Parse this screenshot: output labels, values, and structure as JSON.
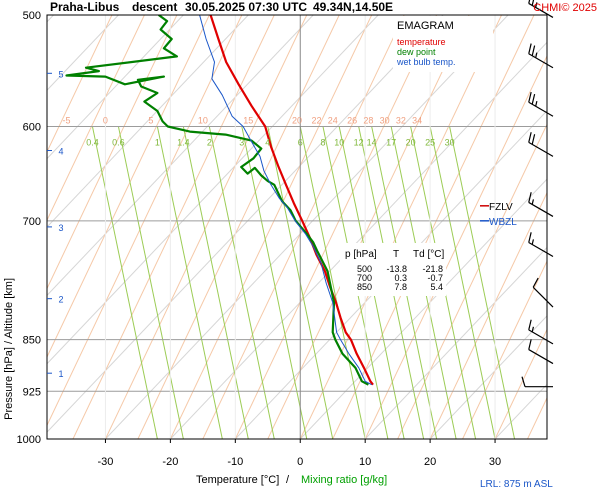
{
  "header": {
    "station": "Praha-Libus",
    "mode": "descent",
    "datetime": "30.05.2025 07:30 UTC",
    "coords": "49.34N,14.50E",
    "copyright": "CHMI© 2025"
  },
  "legend": {
    "title": "EMAGRAM",
    "items": [
      {
        "label": "temperature",
        "color": "#e00000"
      },
      {
        "label": "dew point",
        "color": "#008000"
      },
      {
        "label": "wet bulb temp.",
        "color": "#1a56c8"
      }
    ]
  },
  "table": {
    "headers": [
      "p [hPa]",
      "T",
      "Td [°C]"
    ],
    "rows": [
      [
        "500",
        "-13.8",
        "-21.8"
      ],
      [
        "700",
        "0.3",
        "-0.7"
      ],
      [
        "850",
        "7.8",
        "5.4"
      ]
    ]
  },
  "levels": {
    "fzlv": {
      "label": "FZLV",
      "pressure": 700,
      "color": "#cc0000"
    },
    "wbzl": {
      "label": "WBZL",
      "pressure": 700,
      "color": "#1a56c8"
    }
  },
  "footer": {
    "xlabel_temp": "Temperature [°C]",
    "xlabel_sep": "/",
    "xlabel_mix": "Mixing ratio [g/kg]",
    "lrl": "LRL: 875 m ASL"
  },
  "chart_data": {
    "type": "line",
    "title": "Praha-Libus descent 30.05.2025 07:30 UTC 49.34N,14.50E",
    "ylabel": "Pressure [hPa] / Altitude [km]",
    "xlim": [
      -39,
      38
    ],
    "ylim": [
      1000,
      500
    ],
    "y_log_scale": true,
    "pressure_ticks": [
      500,
      600,
      700,
      850,
      925,
      1000
    ],
    "temperature_ticks": [
      -30,
      -20,
      -10,
      0,
      10,
      20,
      30
    ],
    "altitude_ticks": [
      {
        "label": "1",
        "pressure": 898
      },
      {
        "label": "2",
        "pressure": 795
      },
      {
        "label": "3",
        "pressure": 707
      },
      {
        "label": "4",
        "pressure": 624
      },
      {
        "label": "5",
        "pressure": 550
      }
    ],
    "isotherm_labels": [
      {
        "value": "-5",
        "t": -36
      },
      {
        "value": "0",
        "t": -30
      },
      {
        "value": "5",
        "t": -23
      },
      {
        "value": "10",
        "t": -15
      },
      {
        "value": "15",
        "t": -8
      },
      {
        "value": "20",
        "t": -0.5
      },
      {
        "value": "22",
        "t": 2.5
      },
      {
        "value": "24",
        "t": 5
      },
      {
        "value": "26",
        "t": 8
      },
      {
        "value": "28",
        "t": 10.5
      },
      {
        "value": "30",
        "t": 13
      },
      {
        "value": "32",
        "t": 15.5
      },
      {
        "value": "34",
        "t": 18
      }
    ],
    "mixing_ratio_labels": [
      {
        "value": "0.4",
        "t": -32
      },
      {
        "value": "0.6",
        "t": -28
      },
      {
        "value": "1",
        "t": -22
      },
      {
        "value": "1.4",
        "t": -18
      },
      {
        "value": "2",
        "t": -14
      },
      {
        "value": "3",
        "t": -9
      },
      {
        "value": "4",
        "t": -5
      },
      {
        "value": "6",
        "t": 0
      },
      {
        "value": "8",
        "t": 3.5
      },
      {
        "value": "10",
        "t": 6
      },
      {
        "value": "12",
        "t": 9
      },
      {
        "value": "14",
        "t": 11
      },
      {
        "value": "17",
        "t": 14
      },
      {
        "value": "20",
        "t": 17
      },
      {
        "value": "25",
        "t": 20
      },
      {
        "value": "30",
        "t": 23
      }
    ],
    "series": [
      {
        "name": "temperature",
        "color": "#e00000",
        "width": 2.2,
        "points": [
          [
            -13.8,
            500
          ],
          [
            -12.6,
            520
          ],
          [
            -11.4,
            540
          ],
          [
            -9.5,
            560
          ],
          [
            -7.5,
            580
          ],
          [
            -5.4,
            600
          ],
          [
            -4.5,
            620
          ],
          [
            -3.4,
            640
          ],
          [
            -2.2,
            660
          ],
          [
            -1.0,
            680
          ],
          [
            0.3,
            700
          ],
          [
            1.5,
            720
          ],
          [
            2.5,
            740
          ],
          [
            3.8,
            760
          ],
          [
            4.6,
            780
          ],
          [
            5.5,
            800
          ],
          [
            6.2,
            820
          ],
          [
            7.0,
            840
          ],
          [
            7.8,
            850
          ],
          [
            8.7,
            870
          ],
          [
            9.8,
            890
          ],
          [
            10.8,
            910
          ],
          [
            11.2,
            915
          ]
        ]
      },
      {
        "name": "dew point",
        "color": "#008000",
        "width": 2.2,
        "points": [
          [
            -21.8,
            500
          ],
          [
            -20.5,
            505
          ],
          [
            -21.5,
            512
          ],
          [
            -19.8,
            520
          ],
          [
            -21.0,
            528
          ],
          [
            -19.0,
            535
          ],
          [
            -33,
            545
          ],
          [
            -31,
            548
          ],
          [
            -36,
            552
          ],
          [
            -30,
            553
          ],
          [
            -27,
            560
          ],
          [
            -21,
            553
          ],
          [
            -25,
            556
          ],
          [
            -24.5,
            562
          ],
          [
            -22,
            568
          ],
          [
            -24,
            576
          ],
          [
            -22,
            585
          ],
          [
            -21.2,
            595
          ],
          [
            -20.4,
            600
          ],
          [
            -17.0,
            605
          ],
          [
            -11.5,
            608
          ],
          [
            -7.5,
            614
          ],
          [
            -6.0,
            622
          ],
          [
            -7.2,
            632
          ],
          [
            -9.1,
            641
          ],
          [
            -8.1,
            648
          ],
          [
            -7.0,
            642
          ],
          [
            -6.0,
            650
          ],
          [
            -5.0,
            656
          ],
          [
            -4.0,
            660
          ],
          [
            -2.8,
            678
          ],
          [
            -1.5,
            688
          ],
          [
            -0.7,
            700
          ],
          [
            1.0,
            715
          ],
          [
            2.0,
            725
          ],
          [
            2.6,
            735
          ],
          [
            4.2,
            760
          ],
          [
            5.2,
            800
          ],
          [
            5.0,
            840
          ],
          [
            5.4,
            850
          ],
          [
            6.5,
            870
          ],
          [
            8.5,
            890
          ],
          [
            9.5,
            910
          ],
          [
            10.5,
            915
          ]
        ]
      },
      {
        "name": "wet bulb temp.",
        "color": "#1a56c8",
        "width": 1,
        "points": [
          [
            -15.5,
            500
          ],
          [
            -14.5,
            520
          ],
          [
            -13.2,
            540
          ],
          [
            -13.6,
            555
          ],
          [
            -12.0,
            570
          ],
          [
            -10.5,
            590
          ],
          [
            -8.8,
            600
          ],
          [
            -7.5,
            615
          ],
          [
            -6.2,
            630
          ],
          [
            -5.6,
            645
          ],
          [
            -4.5,
            660
          ],
          [
            -3.2,
            675
          ],
          [
            -2.0,
            685
          ],
          [
            -0.8,
            700
          ],
          [
            0.8,
            715
          ],
          [
            2.0,
            730
          ],
          [
            3.2,
            750
          ],
          [
            4.0,
            775
          ],
          [
            5.0,
            800
          ],
          [
            5.6,
            840
          ],
          [
            6.2,
            850
          ],
          [
            7.5,
            870
          ],
          [
            9.0,
            890
          ],
          [
            10.0,
            910
          ],
          [
            11.0,
            915
          ]
        ]
      }
    ],
    "wind_barbs": [
      {
        "pressure": 502,
        "dir": 300,
        "speed": 25
      },
      {
        "pressure": 545,
        "dir": 300,
        "speed": 25
      },
      {
        "pressure": 590,
        "dir": 300,
        "speed": 25
      },
      {
        "pressure": 630,
        "dir": 300,
        "speed": 20
      },
      {
        "pressure": 695,
        "dir": 300,
        "speed": 15
      },
      {
        "pressure": 742,
        "dir": 300,
        "speed": 15
      },
      {
        "pressure": 806,
        "dir": 315,
        "speed": 10
      },
      {
        "pressure": 856,
        "dir": 300,
        "speed": 15
      },
      {
        "pressure": 884,
        "dir": 300,
        "speed": 10
      },
      {
        "pressure": 918,
        "dir": 270,
        "speed": 10
      }
    ]
  }
}
